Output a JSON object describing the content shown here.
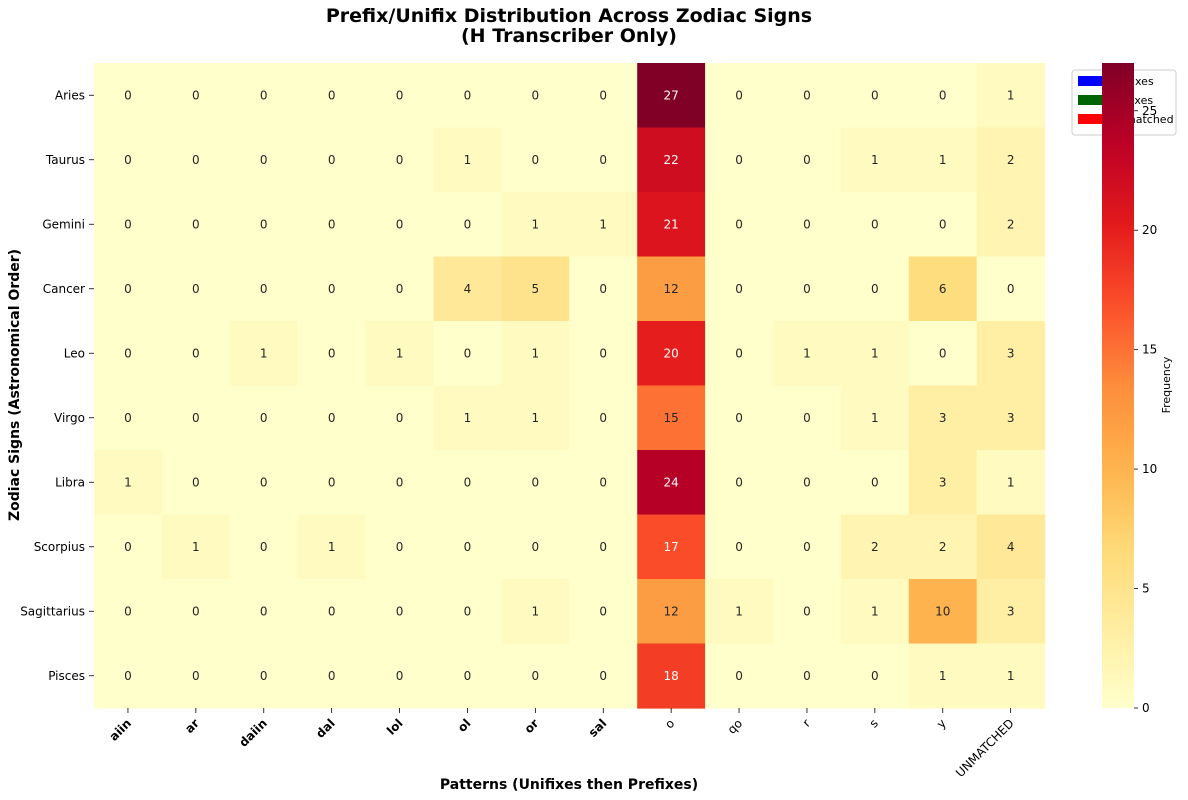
{
  "chart_data": {
    "type": "heatmap",
    "title": "Prefix/Unifix Distribution Across Zodiac Signs",
    "subtitle": "(H Transcriber Only)",
    "xlabel": "Patterns (Unifixes then Prefixes)",
    "ylabel": "Zodiac Signs (Astronomical Order)",
    "colorbar_label": "Frequency",
    "colorbar_ticks": [
      0,
      5,
      10,
      15,
      20,
      25
    ],
    "colorbar_range": [
      0,
      27
    ],
    "colormap": "YlOrRd",
    "columns": [
      "aiin",
      "ar",
      "daiin",
      "dal",
      "lol",
      "ol",
      "or",
      "sal",
      "o",
      "qo",
      "r",
      "s",
      "y",
      "UNMATCHED"
    ],
    "column_groups": [
      "unifix",
      "unifix",
      "unifix",
      "unifix",
      "unifix",
      "unifix",
      "unifix",
      "unifix",
      "prefix",
      "prefix",
      "prefix",
      "prefix",
      "prefix",
      "unmatched"
    ],
    "group_colors": {
      "unifix": "#0000ff",
      "prefix": "#006400",
      "unmatched": "#ff0000"
    },
    "rows": [
      "Aries",
      "Taurus",
      "Gemini",
      "Cancer",
      "Leo",
      "Virgo",
      "Libra",
      "Scorpius",
      "Sagittarius",
      "Pisces"
    ],
    "values": [
      [
        0,
        0,
        0,
        0,
        0,
        0,
        0,
        0,
        27,
        0,
        0,
        0,
        0,
        1
      ],
      [
        0,
        0,
        0,
        0,
        0,
        1,
        0,
        0,
        22,
        0,
        0,
        1,
        1,
        2
      ],
      [
        0,
        0,
        0,
        0,
        0,
        0,
        1,
        1,
        21,
        0,
        0,
        0,
        0,
        2
      ],
      [
        0,
        0,
        0,
        0,
        0,
        4,
        5,
        0,
        12,
        0,
        0,
        0,
        6,
        0
      ],
      [
        0,
        0,
        1,
        0,
        1,
        0,
        1,
        0,
        20,
        0,
        1,
        1,
        0,
        3
      ],
      [
        0,
        0,
        0,
        0,
        0,
        1,
        1,
        0,
        15,
        0,
        0,
        1,
        3,
        3
      ],
      [
        1,
        0,
        0,
        0,
        0,
        0,
        0,
        0,
        24,
        0,
        0,
        0,
        3,
        1
      ],
      [
        0,
        1,
        0,
        1,
        0,
        0,
        0,
        0,
        17,
        0,
        0,
        2,
        2,
        4
      ],
      [
        0,
        0,
        0,
        0,
        0,
        0,
        1,
        0,
        12,
        1,
        0,
        1,
        10,
        3
      ],
      [
        0,
        0,
        0,
        0,
        0,
        0,
        0,
        0,
        18,
        0,
        0,
        0,
        1,
        1
      ]
    ],
    "legend": {
      "placement": "top-right",
      "entries": [
        {
          "label": "Unifixes",
          "color": "#0000ff"
        },
        {
          "label": "Prefixes",
          "color": "#006400"
        },
        {
          "label": "Unmatched",
          "color": "#ff0000"
        }
      ]
    }
  }
}
